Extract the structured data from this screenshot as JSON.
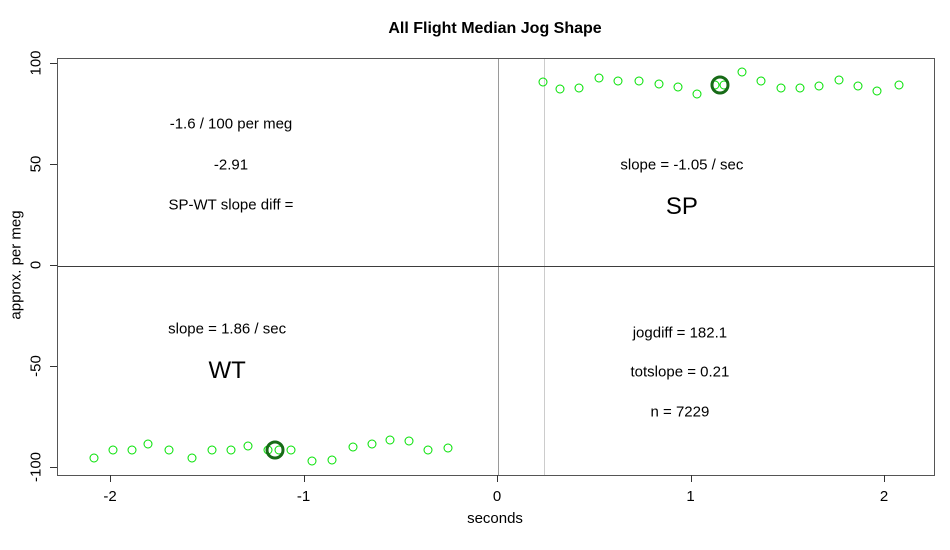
{
  "title": "All Flight Median Jog Shape",
  "xlabel": "seconds",
  "ylabel": "approx. per meg",
  "chart_data": {
    "type": "scatter",
    "title": "All Flight Median Jog Shape",
    "xlabel": "seconds",
    "ylabel": "approx. per meg",
    "xlim": [
      -2.274,
      2.253
    ],
    "ylim": [
      -103.5,
      102.5
    ],
    "x_ticks": [
      -2,
      -1,
      0,
      1,
      2
    ],
    "y_ticks": [
      -100,
      -50,
      0,
      50,
      100
    ],
    "grid": false,
    "point_color": "#00e100",
    "highlight_color": "#176b17",
    "series": [
      {
        "name": "WT",
        "points": [
          [
            -2.09,
            -95
          ],
          [
            -1.99,
            -91
          ],
          [
            -1.89,
            -91
          ],
          [
            -1.81,
            -88
          ],
          [
            -1.7,
            -91
          ],
          [
            -1.58,
            -95
          ],
          [
            -1.48,
            -91
          ],
          [
            -1.38,
            -91
          ],
          [
            -1.29,
            -89
          ],
          [
            -1.19,
            -91
          ],
          [
            -1.13,
            -91
          ],
          [
            -1.07,
            -91
          ],
          [
            -0.96,
            -96.5
          ],
          [
            -0.86,
            -96
          ],
          [
            -0.75,
            -89.5
          ],
          [
            -0.65,
            -88
          ],
          [
            -0.56,
            -86
          ],
          [
            -0.46,
            -86.5
          ],
          [
            -0.36,
            -91
          ],
          [
            -0.26,
            -90
          ]
        ]
      },
      {
        "name": "SP",
        "points": [
          [
            0.23,
            91
          ],
          [
            0.32,
            87.5
          ],
          [
            0.42,
            88
          ],
          [
            0.52,
            93
          ],
          [
            0.62,
            91.5
          ],
          [
            0.73,
            91.5
          ],
          [
            0.83,
            90
          ],
          [
            0.93,
            88.5
          ],
          [
            1.03,
            85
          ],
          [
            1.12,
            89.5
          ],
          [
            1.17,
            89.5
          ],
          [
            1.26,
            96
          ],
          [
            1.36,
            91.5
          ],
          [
            1.46,
            88
          ],
          [
            1.56,
            88
          ],
          [
            1.66,
            89
          ],
          [
            1.76,
            92
          ],
          [
            1.86,
            89
          ],
          [
            1.96,
            86.5
          ],
          [
            2.07,
            89.5
          ]
        ]
      }
    ],
    "highlighted_points": [
      [
        -1.155,
        -91
      ],
      [
        1.145,
        89.5
      ]
    ],
    "reference_lines": {
      "horizontal": [
        {
          "y": 0,
          "color": "#3d3d3d"
        }
      ],
      "vertical": [
        {
          "x": 0,
          "color": "#9a9a9a"
        },
        {
          "x": 0.235,
          "color": "#cccccc"
        }
      ]
    },
    "annotations": [
      {
        "text": "-1.6 / 100 per meg",
        "x": -1.38,
        "y": 70.5,
        "size": 15
      },
      {
        "text": "-2.91",
        "x": -1.38,
        "y": 50,
        "size": 15
      },
      {
        "text": "SP-WT slope diff =",
        "x": -1.38,
        "y": 30,
        "size": 15
      },
      {
        "text": "slope = -1.05 / sec",
        "x": 0.95,
        "y": 50,
        "size": 15
      },
      {
        "text": "SP",
        "x": 0.95,
        "y": 29,
        "size": 24
      },
      {
        "text": "slope = 1.86 / sec",
        "x": -1.4,
        "y": -31,
        "size": 15
      },
      {
        "text": "WT",
        "x": -1.4,
        "y": -52,
        "size": 24
      },
      {
        "text": "jogdiff = 182.1",
        "x": 0.94,
        "y": -33,
        "size": 15
      },
      {
        "text": "totslope = 0.21",
        "x": 0.94,
        "y": -52.5,
        "size": 15
      },
      {
        "text": "n = 7229",
        "x": 0.94,
        "y": -72.5,
        "size": 15
      }
    ]
  }
}
